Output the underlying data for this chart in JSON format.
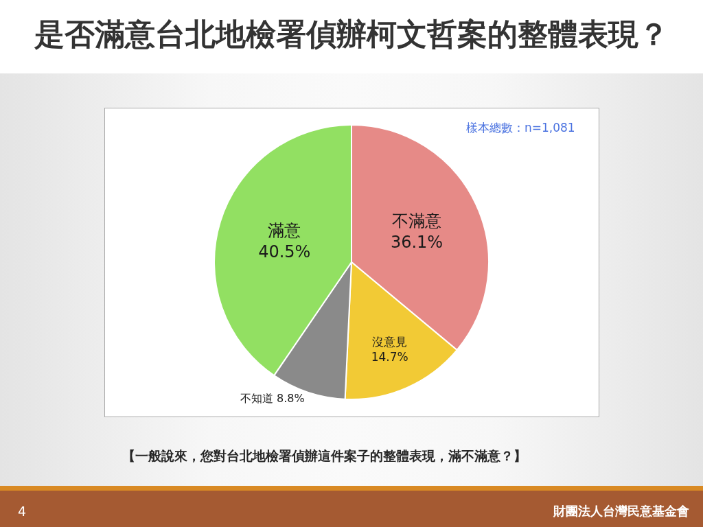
{
  "chart_data": {
    "type": "pie",
    "title": "是否滿意台北地檢署偵辦柯文哲案的整體表現？",
    "categories": [
      "不滿意",
      "沒意見",
      "不知道",
      "滿意"
    ],
    "values": [
      36.1,
      14.7,
      8.8,
      40.5
    ],
    "value_labels": [
      "36.1%",
      "14.7%",
      "8.8%",
      "40.5%"
    ],
    "colors": [
      "#e68a87",
      "#f2ca35",
      "#8a8a8a",
      "#92e062"
    ],
    "legend": false,
    "annotations": [
      "樣本總數：n=1,081",
      "【一般說來，您對台北地檢署偵辦這件案子的整體表現，滿不滿意？】",
      "4",
      "財團法人台灣民意基金會"
    ]
  }
}
